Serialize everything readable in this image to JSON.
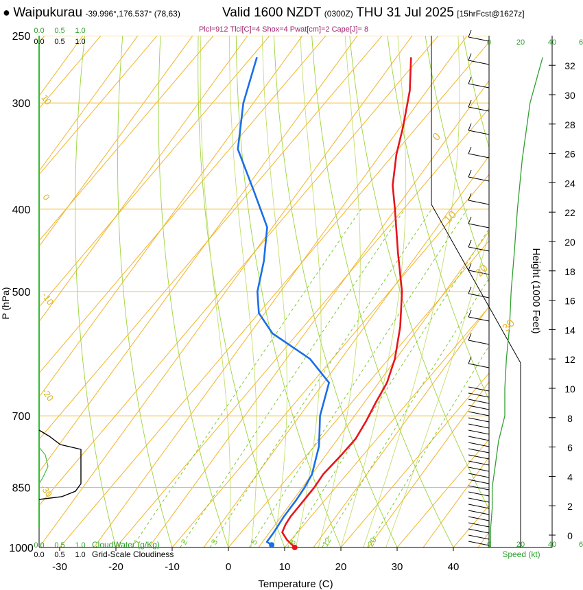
{
  "header": {
    "station": "Waipukurau",
    "coords": "-39.996°,176.537° (78,63)",
    "valid": "Valid 1600 NZDT",
    "utc": "(0300Z)",
    "date": "THU 31 Jul 2025",
    "forecast": "[15hrFcst@1627z]",
    "params": "Plcl=912 Tlcl[C]=4 Shox=4 Pwat[cm]=2 Cape[J]= 8"
  },
  "chart_data": {
    "type": "line",
    "title": "Skew-T sounding",
    "xlabel": "Temperature (C)",
    "ylabel": "P (hPa)",
    "right_ylabel": "Height (1000 Feet)",
    "temp_ticks": [
      "-30",
      "-20",
      "-10",
      "0",
      "10",
      "20",
      "30",
      "40"
    ],
    "temp_tick_values": [
      -30,
      -20,
      -10,
      0,
      10,
      20,
      30,
      40
    ],
    "pressure_ticks": [
      "250",
      "300",
      "400",
      "500",
      "700",
      "850",
      "1000"
    ],
    "pressure_tick_values": [
      250,
      300,
      400,
      500,
      700,
      850,
      1000
    ],
    "height_ticks": [
      "0",
      "2",
      "4",
      "6",
      "8",
      "10",
      "12",
      "14",
      "16",
      "18",
      "20",
      "22",
      "24",
      "26",
      "28",
      "30",
      "32"
    ],
    "height_tick_values": [
      0,
      2,
      4,
      6,
      8,
      10,
      12,
      14,
      16,
      18,
      20,
      22,
      24,
      26,
      28,
      30,
      32
    ],
    "mixing_ratio_labels": [
      "1",
      "2",
      "3",
      "5",
      "8",
      "12",
      "20"
    ],
    "mixing_ratio_values": [
      1,
      2,
      3,
      5,
      8,
      12,
      20
    ],
    "theta_labels": [
      "10",
      "0",
      "-10",
      "-20",
      "-30"
    ],
    "theta_e_labels": [
      "0",
      "10",
      "20",
      "30"
    ],
    "speed_axis_ticks": [
      "0",
      "20",
      "40",
      "6"
    ],
    "speed_label": "Speed (kt)",
    "cloud_axis_ticks": [
      "0.0",
      "0.5",
      "1.0"
    ],
    "cloudwater_label": "CloudWater (g/Kg)",
    "cloudiness_label": "Grid-Scale Cloudiness",
    "series": [
      {
        "name": "Temperature",
        "color": "#e8141c",
        "points": [
          [
            1000,
            11.8
          ],
          [
            980,
            9.3
          ],
          [
            960,
            7.3
          ],
          [
            940,
            6.7
          ],
          [
            920,
            6.4
          ],
          [
            880,
            6.3
          ],
          [
            850,
            6.2
          ],
          [
            820,
            5.8
          ],
          [
            780,
            6.1
          ],
          [
            745,
            6.2
          ],
          [
            710,
            5.4
          ],
          [
            675,
            4.3
          ],
          [
            640,
            3.3
          ],
          [
            600,
            1.1
          ],
          [
            550,
            -2.8
          ],
          [
            500,
            -7.8
          ],
          [
            450,
            -14.4
          ],
          [
            400,
            -21.5
          ],
          [
            375,
            -25.5
          ],
          [
            345,
            -29.5
          ],
          [
            320,
            -32.5
          ],
          [
            290,
            -36.8
          ],
          [
            265,
            -41.6
          ]
        ]
      },
      {
        "name": "Dewpoint",
        "color": "#1a6ee6",
        "points": [
          [
            993,
            7.3
          ],
          [
            985,
            6.0
          ],
          [
            960,
            5.8
          ],
          [
            920,
            5.2
          ],
          [
            880,
            4.9
          ],
          [
            850,
            4.5
          ],
          [
            820,
            3.8
          ],
          [
            760,
            0.8
          ],
          [
            700,
            -3.6
          ],
          [
            640,
            -7.0
          ],
          [
            600,
            -14.0
          ],
          [
            560,
            -24.5
          ],
          [
            530,
            -30.0
          ],
          [
            500,
            -33.5
          ],
          [
            460,
            -37.0
          ],
          [
            420,
            -41.5
          ],
          [
            380,
            -49.5
          ],
          [
            340,
            -58.5
          ],
          [
            300,
            -64.5
          ],
          [
            265,
            -69.0
          ]
        ]
      }
    ],
    "surface_temperature": 11.8,
    "surface_dewpoint": 7.3,
    "wind_speed_profile_kt": [
      [
        1000,
        1
      ],
      [
        950,
        1
      ],
      [
        900,
        2
      ],
      [
        850,
        2
      ],
      [
        800,
        4
      ],
      [
        750,
        6
      ],
      [
        700,
        10
      ],
      [
        650,
        10
      ],
      [
        600,
        11
      ],
      [
        550,
        13
      ],
      [
        500,
        14
      ],
      [
        450,
        16
      ],
      [
        400,
        18
      ],
      [
        350,
        21
      ],
      [
        300,
        26
      ],
      [
        265,
        34
      ]
    ]
  }
}
